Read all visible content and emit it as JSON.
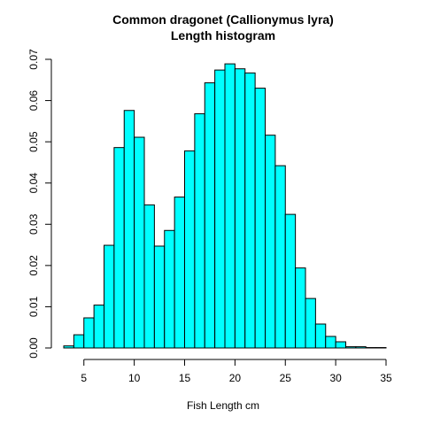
{
  "chart_data": {
    "type": "bar",
    "title": "Common dragonet (Callionymus lyra)",
    "subtitle": "Length histogram",
    "xlabel": "Fish Length cm",
    "ylabel": "",
    "xlim": [
      3,
      35
    ],
    "ylim": [
      0,
      0.07
    ],
    "x_ticks": [
      5,
      10,
      15,
      20,
      25,
      30,
      35
    ],
    "y_ticks": [
      0.0,
      0.01,
      0.02,
      0.03,
      0.04,
      0.05,
      0.06,
      0.07
    ],
    "x_tick_labels": [
      "5",
      "10",
      "15",
      "20",
      "25",
      "30",
      "35"
    ],
    "y_tick_labels": [
      "0.00",
      "0.01",
      "0.02",
      "0.03",
      "0.04",
      "0.05",
      "0.06",
      "0.07"
    ],
    "bin_width": 1,
    "bins_start": [
      3,
      4,
      5,
      6,
      7,
      8,
      9,
      10,
      11,
      12,
      13,
      14,
      15,
      16,
      17,
      18,
      19,
      20,
      21,
      22,
      23,
      24,
      25,
      26,
      27,
      28,
      29,
      30,
      31,
      32,
      33,
      34
    ],
    "values": [
      0.0005,
      0.0032,
      0.0073,
      0.0104,
      0.0249,
      0.0486,
      0.0576,
      0.0511,
      0.0347,
      0.0247,
      0.0285,
      0.0366,
      0.0478,
      0.0568,
      0.0643,
      0.0674,
      0.0689,
      0.0677,
      0.0667,
      0.063,
      0.0516,
      0.0442,
      0.0324,
      0.0194,
      0.012,
      0.0058,
      0.0028,
      0.0015,
      0.0003,
      0.0003,
      0.0001,
      0.0001
    ],
    "grid": false,
    "colors": {
      "bar_fill": "#00ffff",
      "bar_stroke": "#000000"
    }
  }
}
